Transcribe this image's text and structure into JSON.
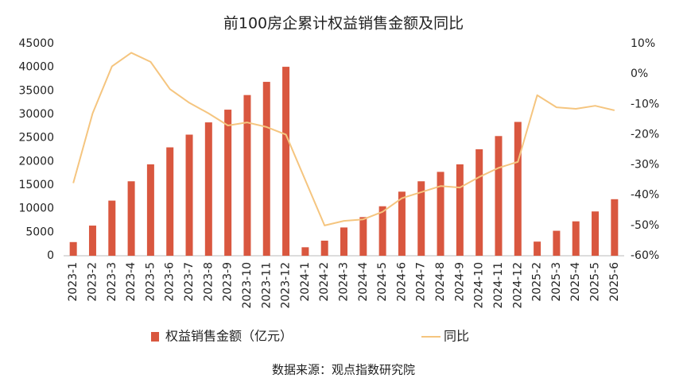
{
  "chart_data": {
    "type": "bar-line",
    "title": "前100房企累计权益销售金额及同比",
    "source": "数据来源：观点指数研究院",
    "categories": [
      "2023-1",
      "2023-2",
      "2023-3",
      "2023-4",
      "2023-5",
      "2023-6",
      "2023-7",
      "2023-8",
      "2023-9",
      "2023-10",
      "2023-11",
      "2023-12",
      "2024-1",
      "2024-2",
      "2024-3",
      "2024-4",
      "2024-5",
      "2024-6",
      "2024-7",
      "2024-8",
      "2024-9",
      "2024-10",
      "2024-11",
      "2024-12",
      "2025-2",
      "2025-3",
      "2025-4",
      "2025-5",
      "2025-6"
    ],
    "series": [
      {
        "name": "权益销售金额（亿元）",
        "type": "bar",
        "color": "#d9573f",
        "values": [
          2900,
          6400,
          11700,
          15800,
          19400,
          23000,
          25700,
          28300,
          31000,
          34100,
          36900,
          40100,
          1800,
          3200,
          6000,
          8200,
          10500,
          13600,
          15800,
          17800,
          19400,
          22600,
          25400,
          28400,
          3000,
          5300,
          7300,
          9400,
          12000
        ]
      },
      {
        "name": "同比",
        "type": "line",
        "axis": "y2",
        "color": "#f5c57f",
        "values": [
          -36,
          -13,
          2.5,
          7,
          4,
          -5,
          -9.5,
          -13,
          -17,
          -16,
          -17.5,
          -20,
          -35,
          -50,
          -48.5,
          -48,
          -45.5,
          -41,
          -39,
          -37,
          -37.5,
          -34,
          -31,
          -29,
          -7,
          -11,
          -11.5,
          -10.5,
          -12
        ]
      }
    ],
    "ylim": [
      0,
      45000
    ],
    "yticks": [
      0,
      5000,
      10000,
      15000,
      20000,
      25000,
      30000,
      35000,
      40000,
      45000
    ],
    "y2lim": [
      -60,
      10
    ],
    "y2ticks": [
      {
        "value": -60,
        "label": "-60%"
      },
      {
        "value": -50,
        "label": "-50%"
      },
      {
        "value": -40,
        "label": "-40%"
      },
      {
        "value": -30,
        "label": "-30%"
      },
      {
        "value": -20,
        "label": "-20%"
      },
      {
        "value": -10,
        "label": "-10%"
      },
      {
        "value": 0,
        "label": "0%"
      },
      {
        "value": 10,
        "label": "10%"
      }
    ],
    "legend": "bottom"
  }
}
